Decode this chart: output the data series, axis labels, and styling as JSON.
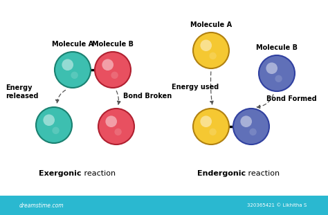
{
  "bg_color": "#ffffff",
  "teal_color": "#3dbfb0",
  "red_color": "#e85060",
  "yellow_color": "#f5c832",
  "blue_color": "#6070b8",
  "teal_edge": "#1a8070",
  "red_edge": "#b02030",
  "yellow_edge": "#b08010",
  "blue_edge": "#3040a0",
  "footer_color": "#2ab8d0",
  "footer_text": "dreamstime.com",
  "watermark_text": "320365421 © Likhitha S",
  "exergonic": {
    "mol_a_label": "Molecule A",
    "mol_b_label": "Molecule B",
    "energy_label": "Energy\nreleased",
    "bond_label": "Bond Broken",
    "reaction_bold": "Exergonic",
    "reaction_normal": " reaction"
  },
  "endergonic": {
    "mol_a_label": "Molecule A",
    "mol_b_label": "Molecule B",
    "energy_label": "Energy used",
    "bond_label": "Bond Formed",
    "reaction_bold": "Endergonic",
    "reaction_normal": " reaction"
  }
}
